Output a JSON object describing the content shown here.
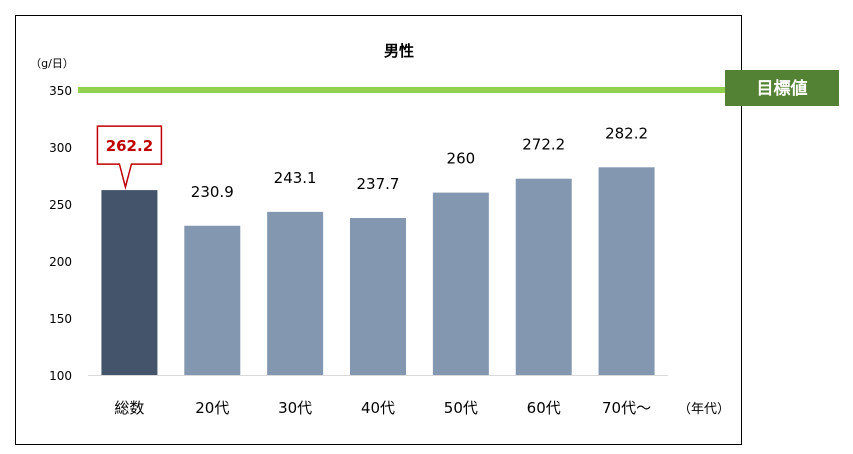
{
  "chart_data": {
    "type": "bar",
    "title": "男性",
    "ylabel": "（g/日）",
    "xlabel": "（年代）",
    "ylim": [
      100,
      350
    ],
    "yticks": [
      100,
      150,
      200,
      250,
      300,
      350
    ],
    "categories": [
      "総数",
      "20代",
      "30代",
      "40代",
      "50代",
      "60代",
      "70代～"
    ],
    "values": [
      262.2,
      230.9,
      243.1,
      237.7,
      260,
      272.2,
      282.2
    ],
    "value_labels": [
      "262.2",
      "230.9",
      "243.1",
      "237.7",
      "260",
      "272.2",
      "282.2"
    ],
    "highlight_index": 0,
    "grid": false,
    "target": {
      "value": 350,
      "label": "目標値"
    },
    "colors": {
      "total_bar": "#44546a",
      "age_bar": "#8497b0",
      "target_line": "#92d050",
      "target_box": "#548235",
      "callout": "#c00000"
    }
  }
}
